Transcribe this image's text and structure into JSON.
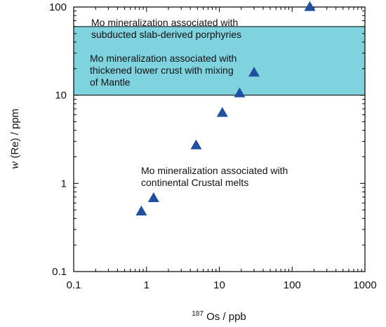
{
  "chart_data": {
    "type": "scatter",
    "xlabel": {
      "superscript": "187",
      "text": "Os / ppb"
    },
    "ylabel": {
      "italic": "w",
      "text": "(Re) / ppm"
    },
    "x_scale": "log",
    "y_scale": "log",
    "xlim": [
      0.1,
      1000
    ],
    "ylim": [
      0.1,
      100
    ],
    "x_ticks": [
      "0.1",
      "1",
      "10",
      "100",
      "1000"
    ],
    "y_ticks": [
      "0.1",
      "1",
      "10",
      "100"
    ],
    "grid": false,
    "series": [
      {
        "marker": "triangle",
        "color": "#1f4f9e",
        "points": [
          {
            "x": 0.85,
            "y": 0.48
          },
          {
            "x": 1.25,
            "y": 0.68
          },
          {
            "x": 4.8,
            "y": 2.7
          },
          {
            "x": 11,
            "y": 6.3
          },
          {
            "x": 19,
            "y": 10.5
          },
          {
            "x": 30,
            "y": 18
          },
          {
            "x": 175,
            "y": 100
          }
        ]
      }
    ],
    "bands": [
      {
        "y_from": 10,
        "y_to": 60,
        "color": "#7fd3df"
      }
    ],
    "annotations": [
      {
        "lines": [
          "Mo mineralization associated with",
          "subducted slab-derived porphyries"
        ]
      },
      {
        "lines": [
          "Mo mineralization associated with",
          "thickened  lower crust with mixing",
          "of Mantle"
        ]
      },
      {
        "lines": [
          "Mo mineralization associated with",
          "continental Crustal melts"
        ]
      }
    ]
  }
}
